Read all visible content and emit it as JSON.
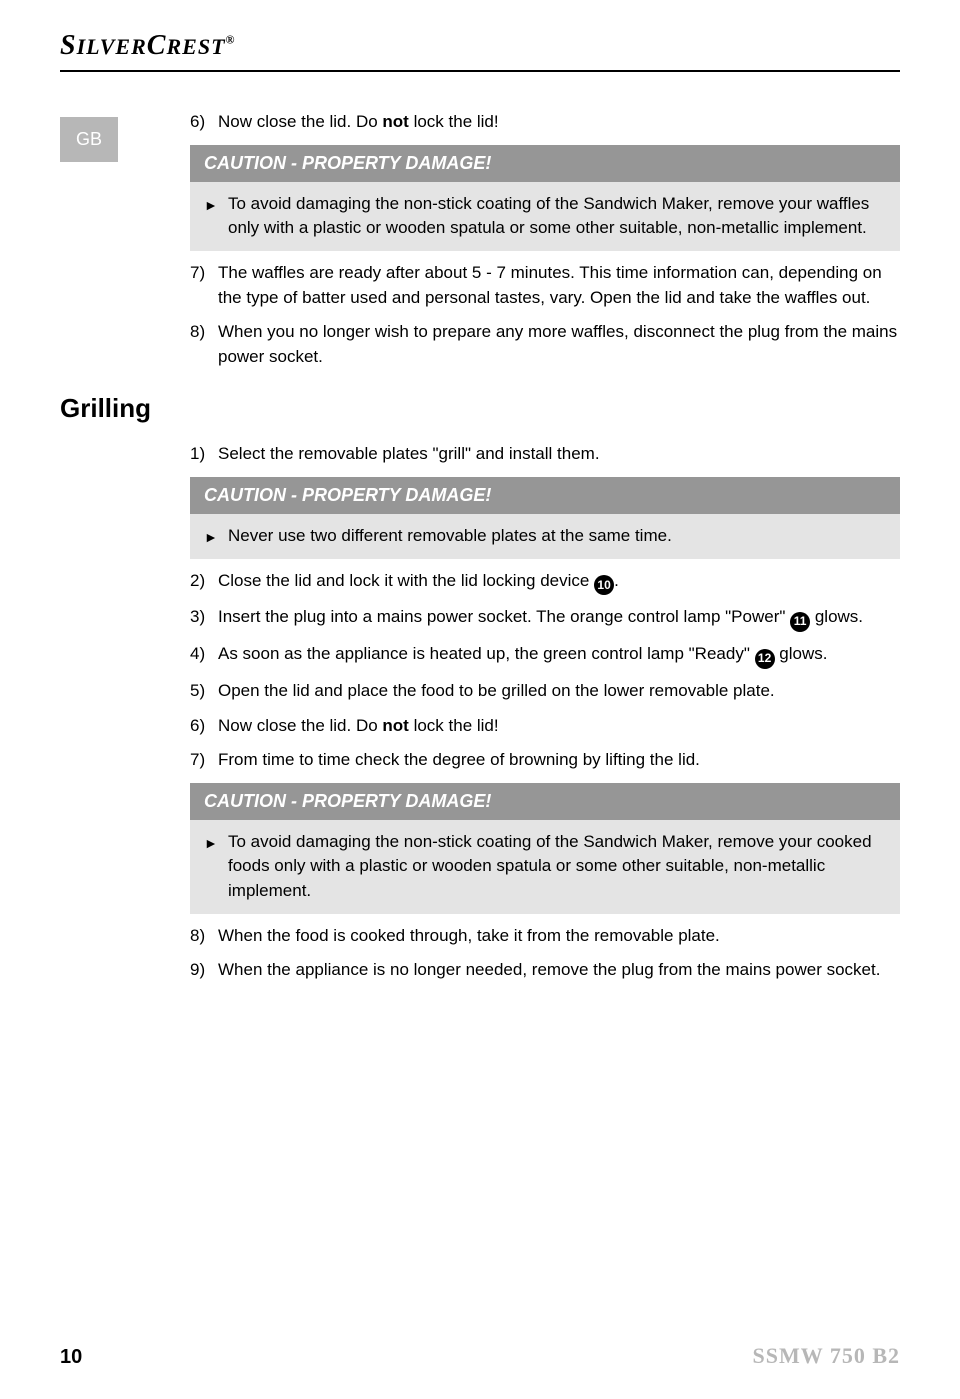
{
  "header": {
    "logo_part1": "S",
    "logo_part2": "ILVER",
    "logo_part3": "C",
    "logo_part4": "REST",
    "logo_reg": "®"
  },
  "tab": "GB",
  "section1": {
    "steps": {
      "s6": {
        "num": "6)",
        "text_pre": "Now close the lid. Do ",
        "bold": "not",
        "text_post": " lock the lid!"
      },
      "s7": {
        "num": "7)",
        "text": "The waffles are ready after about 5 - 7 minutes. This time information can, depending on the type of batter used and personal tastes, vary. Open the lid and take the waffles out."
      },
      "s8": {
        "num": "8)",
        "text": "When you no longer wish to prepare any more waffles, disconnect the plug from the mains power socket."
      }
    },
    "caution": {
      "title": "CAUTION - PROPERTY DAMAGE!",
      "text": "To avoid damaging the non-stick coating of the Sandwich Maker, remove your waffles only with a plastic or wooden spatula or some other suitable, non-metallic implement."
    }
  },
  "section2": {
    "heading": "Grilling",
    "steps": {
      "s1": {
        "num": "1)",
        "text": "Select the removable plates \"grill\" and install them."
      },
      "s2": {
        "num": "2)",
        "text_pre": "Close the lid and lock it with the lid locking device ",
        "icon": "10",
        "text_post": "."
      },
      "s3": {
        "num": "3)",
        "text_pre": "Insert the plug into a mains power socket. The orange control lamp \"Power\" ",
        "icon": "11",
        "text_post": " glows."
      },
      "s4": {
        "num": "4)",
        "text_pre": "As soon as the appliance is heated up, the green control lamp \"Ready\" ",
        "icon": "12",
        "text_post": " glows."
      },
      "s5": {
        "num": "5)",
        "text": "Open the lid and place the food to be grilled on the lower removable plate."
      },
      "s6": {
        "num": "6)",
        "text_pre": "Now close the lid. Do ",
        "bold": "not",
        "text_post": " lock the lid!"
      },
      "s7": {
        "num": "7)",
        "text": "From time to time check the degree of browning by lifting the lid."
      },
      "s8": {
        "num": "8)",
        "text": "When the food is cooked through, take it from the removable plate."
      },
      "s9": {
        "num": "9)",
        "text": "When the appliance is no longer needed, remove the plug from the mains power socket."
      }
    },
    "caution1": {
      "title": "CAUTION - PROPERTY DAMAGE!",
      "text": "Never use two different removable plates at the same time."
    },
    "caution2": {
      "title": "CAUTION - PROPERTY DAMAGE!",
      "text": "To avoid damaging the non-stick coating of the Sandwich Maker, remove your cooked foods only with a plastic or wooden spatula or some other suitable, non-metallic implement."
    }
  },
  "footer": {
    "page": "10",
    "model": "SSMW 750 B2"
  },
  "colors": {
    "tab_bg": "#b7b7b7",
    "caution_header_bg": "#969696",
    "caution_body_bg": "#e4e4e4",
    "model_color": "#b7b7b7"
  }
}
